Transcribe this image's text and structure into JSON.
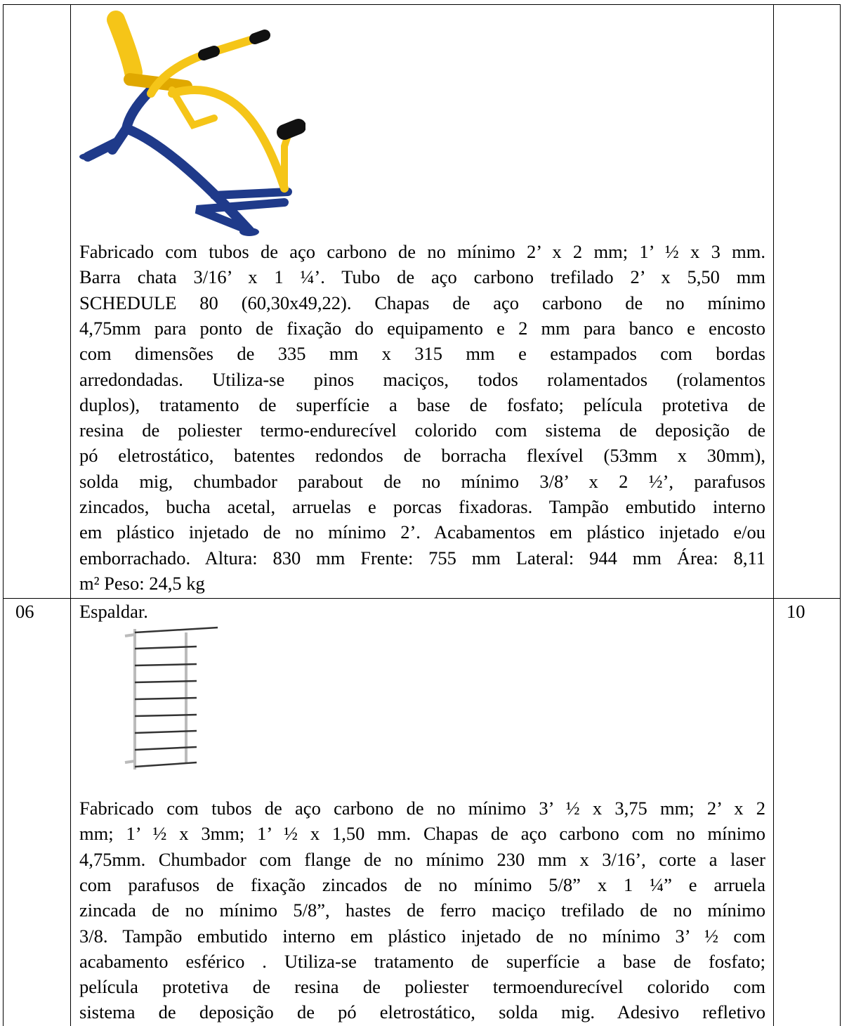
{
  "table": {
    "rows": [
      {
        "description": [
          "Fabricado com tubos de aço carbono de no mínimo 2’ x 2 mm; 1’ ½ x 3 mm.",
          "Barra chata 3/16’ x 1 ¼’. Tubo de aço carbono trefilado 2’ x 5,50 mm",
          "SCHEDULE 80 (60,30x49,22). Chapas de aço carbono de no mínimo",
          "4,75mm para ponto de fixação do equipamento e 2 mm para banco e encosto",
          "com dimensões de 335 mm x 315 mm e estampados com bordas",
          "arredondadas. Utiliza-se pinos maciços, todos rolamentados (rolamentos",
          "duplos), tratamento de superfície a base de fosfato; película protetiva de",
          "resina de poliester termo-endurecível colorido com sistema de deposição de",
          "pó eletrostático, batentes redondos de borracha flexível (53mm x 30mm),",
          "solda mig, chumbador parabout de no mínimo 3/8’ x 2 ½’, parafusos",
          "zincados, bucha acetal, arruelas e porcas fixadoras. Tampão embutido interno",
          "em plástico injetado de no mínimo 2’. Acabamentos em plástico injetado e/ou",
          "emborrachado. Altura: 830 mm Frente: 755 mm Lateral: 944 mm Área: 8,11",
          "m² Peso: 24,5 kg"
        ]
      },
      {
        "item": "06",
        "title": "Espaldar.",
        "quantity": "10",
        "description": [
          "Fabricado com tubos de aço carbono de no mínimo 3’ ½ x 3,75 mm; 2’ x 2",
          "mm; 1’ ½ x 3mm; 1’ ½ x 1,50 mm. Chapas de aço carbono com no mínimo",
          "4,75mm. Chumbador com flange de no mínimo 230 mm x 3/16’, corte a laser",
          "com parafusos de fixação zincados de no mínimo 5/8” x 1 ¼” e arruela",
          "zincada de no mínimo 5/8”, hastes de ferro maciço trefilado de no mínimo",
          "3/8. Tampão embutido interno em plástico injetado de no mínimo 3’ ½ com",
          "acabamento esférico . Utiliza-se tratamento de superfície a base de fosfato;",
          "película protetiva de resina de poliester termoendurecível colorido com",
          "sistema de deposição de pó eletrostático, solda mig. Adesivo refletivo"
        ]
      }
    ]
  }
}
